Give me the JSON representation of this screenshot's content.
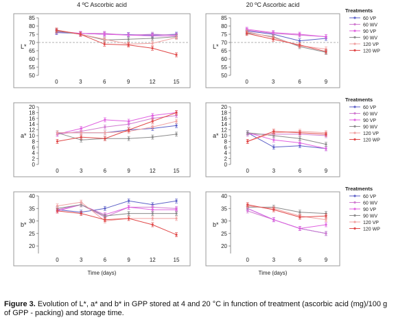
{
  "figure": {
    "caption_label": "Figure 3.",
    "caption_text": "Evolution of L*, a* and b* in GPP stored at 4 and 20 °C in function of treatment (ascorbic acid (mg)/100 g of GPP - packing) and storage time."
  },
  "colors": {
    "60 VP": "#5b5fc7",
    "60 WV": "#d07ad0",
    "90 VP": "#e060e0",
    "90 WV": "#8a8a8a",
    "120 VP": "#f0a0a0",
    "120 WP": "#e04848"
  },
  "chart_data": [
    {
      "type": "line",
      "panel_title": "4 ºC Ascorbic acid",
      "ylabel": "L*",
      "xlabel": "",
      "x": [
        0,
        3,
        6,
        9,
        12,
        15
      ],
      "xticks": [
        "0",
        "3",
        "6",
        "9",
        "12",
        "15"
      ],
      "ylim": [
        50,
        85
      ],
      "yticks": [
        50,
        55,
        60,
        65,
        70,
        75,
        80,
        85
      ],
      "reference_line": 70,
      "series": [
        {
          "name": "60 VP",
          "values": [
            76.0,
            75.5,
            75.0,
            74.8,
            74.5,
            75.0
          ]
        },
        {
          "name": "60 WV",
          "values": [
            76.5,
            75.5,
            75.5,
            74.5,
            75.0,
            74.5
          ]
        },
        {
          "name": "90 VP",
          "values": [
            77.0,
            75.5,
            75.0,
            74.5,
            74.0,
            74.0
          ]
        },
        {
          "name": "90 WV",
          "values": [
            77.0,
            75.0,
            71.5,
            72.0,
            72.5,
            73.5
          ]
        },
        {
          "name": "120 VP",
          "values": [
            77.5,
            75.0,
            72.0,
            69.0,
            69.5,
            73.0
          ]
        },
        {
          "name": "120 WP",
          "values": [
            77.5,
            75.0,
            69.0,
            68.5,
            66.5,
            62.5
          ]
        }
      ]
    },
    {
      "type": "line",
      "panel_title": "20 ºC Ascorbic acid",
      "ylabel": "L*",
      "xlabel": "",
      "x": [
        0,
        3,
        6,
        9
      ],
      "xticks": [
        "0",
        "3",
        "6",
        "9"
      ],
      "ylim": [
        50,
        85
      ],
      "yticks": [
        50,
        55,
        60,
        65,
        70,
        75,
        80,
        85
      ],
      "reference_line": 70,
      "legend_title": "Treatments",
      "series": [
        {
          "name": "60 VP",
          "values": [
            77.0,
            75.0,
            71.0,
            72.5
          ]
        },
        {
          "name": "60 WV",
          "values": [
            77.5,
            75.5,
            74.5,
            73.5
          ]
        },
        {
          "name": "90 VP",
          "values": [
            78.0,
            76.0,
            75.0,
            73.5
          ]
        },
        {
          "name": "90 WV",
          "values": [
            76.0,
            73.5,
            67.5,
            64.0
          ]
        },
        {
          "name": "120 VP",
          "values": [
            76.5,
            73.0,
            68.0,
            66.0
          ]
        },
        {
          "name": "120 WP",
          "values": [
            75.5,
            72.0,
            68.5,
            64.5
          ]
        }
      ]
    },
    {
      "type": "line",
      "panel_title": "",
      "ylabel": "a*",
      "xlabel": "",
      "x": [
        0,
        3,
        6,
        9,
        12,
        15
      ],
      "xticks": [
        "0",
        "3",
        "6",
        "9",
        "12",
        "15"
      ],
      "ylim": [
        0,
        20
      ],
      "yticks": [
        0,
        2,
        4,
        6,
        8,
        10,
        12,
        14,
        16,
        18,
        20
      ],
      "series": [
        {
          "name": "60 VP",
          "values": [
            11.0,
            11.0,
            11.0,
            12.0,
            12.5,
            13.5
          ]
        },
        {
          "name": "60 WV",
          "values": [
            10.5,
            11.5,
            13.0,
            14.0,
            16.0,
            17.0
          ]
        },
        {
          "name": "90 VP",
          "values": [
            10.5,
            12.5,
            15.5,
            15.0,
            17.0,
            18.0
          ]
        },
        {
          "name": "90 WV",
          "values": [
            11.0,
            8.5,
            9.0,
            9.0,
            9.5,
            10.5
          ]
        },
        {
          "name": "120 VP",
          "values": [
            11.0,
            11.0,
            11.0,
            11.5,
            13.0,
            15.0
          ]
        },
        {
          "name": "120 WP",
          "values": [
            8.0,
            9.5,
            9.0,
            12.0,
            15.0,
            18.0
          ]
        }
      ]
    },
    {
      "type": "line",
      "panel_title": "",
      "ylabel": "a*",
      "xlabel": "",
      "x": [
        0,
        3,
        6,
        9
      ],
      "xticks": [
        "0",
        "3",
        "6",
        "9"
      ],
      "ylim": [
        0,
        20
      ],
      "yticks": [
        0,
        2,
        4,
        6,
        8,
        10,
        12,
        14,
        16,
        18,
        20
      ],
      "legend_title": "Treatments",
      "series": [
        {
          "name": "60 VP",
          "values": [
            11.0,
            6.0,
            6.5,
            5.5
          ]
        },
        {
          "name": "60 WV",
          "values": [
            10.5,
            10.5,
            10.5,
            10.0
          ]
        },
        {
          "name": "90 VP",
          "values": [
            11.0,
            8.5,
            7.5,
            5.5
          ]
        },
        {
          "name": "90 WV",
          "values": [
            11.0,
            10.0,
            9.0,
            7.0
          ]
        },
        {
          "name": "120 VP",
          "values": [
            8.0,
            11.0,
            11.5,
            11.0
          ]
        },
        {
          "name": "120 WP",
          "values": [
            8.0,
            11.5,
            11.0,
            10.5
          ]
        }
      ]
    },
    {
      "type": "line",
      "panel_title": "",
      "ylabel": "b*",
      "xlabel": "Time (days)",
      "x": [
        0,
        3,
        6,
        9,
        12,
        15
      ],
      "xticks": [
        "0",
        "3",
        "6",
        "9",
        "12",
        "15"
      ],
      "ylim": [
        17,
        40
      ],
      "yticks": [
        20,
        25,
        30,
        35,
        40
      ],
      "series": [
        {
          "name": "60 VP",
          "values": [
            34.5,
            33.5,
            35.0,
            38.0,
            36.5,
            38.0
          ]
        },
        {
          "name": "60 WV",
          "values": [
            34.5,
            36.5,
            31.5,
            35.5,
            35.5,
            35.0
          ]
        },
        {
          "name": "90 VP",
          "values": [
            34.0,
            36.5,
            32.5,
            35.5,
            34.5,
            34.5
          ]
        },
        {
          "name": "90 WV",
          "values": [
            35.0,
            36.5,
            32.0,
            33.0,
            33.0,
            33.0
          ]
        },
        {
          "name": "120 VP",
          "values": [
            36.0,
            37.5,
            30.0,
            31.0,
            31.0,
            31.0
          ]
        },
        {
          "name": "120 WP",
          "values": [
            34.0,
            33.0,
            30.5,
            31.0,
            28.5,
            24.5
          ]
        }
      ]
    },
    {
      "type": "line",
      "panel_title": "",
      "ylabel": "b*",
      "xlabel": "Time (days)",
      "x": [
        0,
        3,
        6,
        9
      ],
      "xticks": [
        "0",
        "3",
        "6",
        "9"
      ],
      "ylim": [
        17,
        40
      ],
      "yticks": [
        20,
        25,
        30,
        35,
        40
      ],
      "legend_title": "Treatments",
      "series": [
        {
          "name": "60 VP",
          "values": [
            35.0,
            30.5,
            27.0,
            25.0
          ]
        },
        {
          "name": "60 WV",
          "values": [
            34.0,
            30.5,
            27.0,
            25.0
          ]
        },
        {
          "name": "90 VP",
          "values": [
            35.0,
            30.5,
            27.0,
            28.5
          ]
        },
        {
          "name": "90 WV",
          "values": [
            35.5,
            35.5,
            33.5,
            33.0
          ]
        },
        {
          "name": "120 VP",
          "values": [
            36.0,
            35.0,
            32.0,
            30.5
          ]
        },
        {
          "name": "120 WP",
          "values": [
            36.5,
            34.5,
            31.5,
            32.0
          ]
        }
      ]
    }
  ]
}
